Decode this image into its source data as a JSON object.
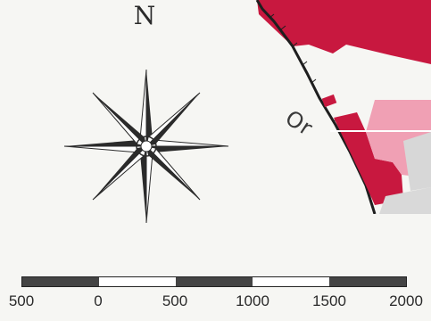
{
  "north_label": "N",
  "map_label": "Or",
  "scale": {
    "ticks": [
      "500",
      "0",
      "500",
      "1000",
      "1500",
      "2000"
    ],
    "segments": [
      "dark",
      "light",
      "dark",
      "light",
      "dark"
    ]
  },
  "colors": {
    "crimson": "#c8183f",
    "pink": "#f0a0b4",
    "gray": "#d7d7d7",
    "ink": "#2a2a2a"
  },
  "icons": {
    "compass": "compass-rose-icon"
  }
}
